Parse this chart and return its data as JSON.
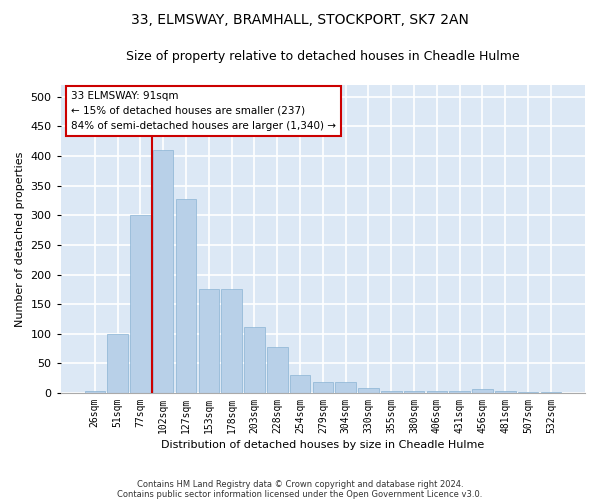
{
  "title": "33, ELMSWAY, BRAMHALL, STOCKPORT, SK7 2AN",
  "subtitle": "Size of property relative to detached houses in Cheadle Hulme",
  "xlabel": "Distribution of detached houses by size in Cheadle Hulme",
  "ylabel": "Number of detached properties",
  "bar_color": "#b8d0e8",
  "bar_edge_color": "#8ab4d4",
  "bg_color": "#dce8f5",
  "grid_color": "#ffffff",
  "categories": [
    "26sqm",
    "51sqm",
    "77sqm",
    "102sqm",
    "127sqm",
    "153sqm",
    "178sqm",
    "203sqm",
    "228sqm",
    "254sqm",
    "279sqm",
    "304sqm",
    "330sqm",
    "355sqm",
    "380sqm",
    "406sqm",
    "431sqm",
    "456sqm",
    "481sqm",
    "507sqm",
    "532sqm"
  ],
  "values": [
    3,
    99,
    301,
    411,
    328,
    175,
    175,
    112,
    77,
    31,
    18,
    18,
    8,
    4,
    4,
    4,
    4,
    7,
    4,
    2,
    1
  ],
  "vline_color": "#cc0000",
  "annotation_text": "33 ELMSWAY: 91sqm\n← 15% of detached houses are smaller (237)\n84% of semi-detached houses are larger (1,340) →",
  "annotation_box_edge": "#cc0000",
  "footer": "Contains HM Land Registry data © Crown copyright and database right 2024.\nContains public sector information licensed under the Open Government Licence v3.0.",
  "ylim": [
    0,
    520
  ],
  "title_fontsize": 10,
  "subtitle_fontsize": 9,
  "footer_fontsize": 6
}
